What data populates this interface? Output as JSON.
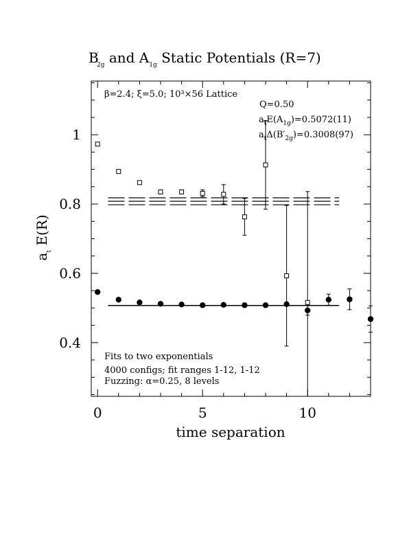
{
  "chart_data": {
    "type": "scatter",
    "title": {
      "a": "B",
      "a_sub": "2g",
      "b": " and A",
      "b_sub": "1g",
      "c": " Static Potentials (R=7)"
    },
    "xlabel": "time separation",
    "ylabel": {
      "main": "a",
      "sub": "t",
      "rest": " E(R)"
    },
    "xlim": [
      -0.3,
      13
    ],
    "ylim": [
      0.245,
      1.155
    ],
    "xticks": [
      0,
      5,
      10
    ],
    "xtick_labels": [
      "0",
      "5",
      "10"
    ],
    "yticks": [
      0.4,
      0.6,
      0.8,
      1.0
    ],
    "ytick_labels": [
      "0.4",
      "0.6",
      "0.8",
      "1"
    ],
    "annotations": {
      "lattice": "β=2.4; ξ=5.0; 10³×56 Lattice",
      "q": "Q=0.50",
      "fit_a1g": {
        "pre": "a",
        "pre_sub": "t",
        "mid": "E(A",
        "mid_sub": "1g",
        "post": ")=0.5072(11)"
      },
      "fit_b2g": {
        "pre": "a",
        "pre_sub": "t",
        "mid": "Δ(B′",
        "mid_sub": "2g",
        "post": ")=0.3008(97)"
      },
      "fits": "Fits to two exponentials",
      "configs": "4000 configs; fit ranges 1-12, 1-12",
      "fuzzing": "Fuzzing: α=0.25, 8 levels"
    },
    "series": [
      {
        "marker": "open-square",
        "x": [
          0,
          1,
          2,
          3,
          4,
          5,
          6,
          7,
          8,
          9,
          10
        ],
        "y": [
          0.973,
          0.894,
          0.862,
          0.835,
          0.835,
          0.831,
          0.828,
          0.763,
          0.913,
          0.593,
          0.516
        ],
        "err": [
          0.004,
          0.004,
          0.005,
          0.006,
          0.006,
          0.01,
          0.028,
          0.053,
          0.128,
          0.203,
          0.32
        ]
      },
      {
        "marker": "filled-circle",
        "x": [
          0,
          1,
          2,
          3,
          4,
          5,
          6,
          7,
          8,
          9,
          10,
          11,
          12,
          13
        ],
        "y": [
          0.546,
          0.524,
          0.516,
          0.512,
          0.51,
          0.508,
          0.509,
          0.508,
          0.508,
          0.511,
          0.493,
          0.524,
          0.525,
          0.468
        ],
        "err": [
          0.0,
          0.0,
          0.0,
          0.0,
          0.0,
          0.0,
          0.0,
          0.0,
          0.0,
          0.0,
          0.014,
          0.016,
          0.03,
          0.038
        ]
      }
    ],
    "fit_lines": [
      {
        "value": 0.5072,
        "error": 0.0011,
        "x_range": [
          0.5,
          11.5
        ],
        "style": "solid"
      },
      {
        "value": 0.808,
        "error": 0.01,
        "x_range": [
          0.5,
          11.5
        ],
        "style": "dashed"
      }
    ]
  }
}
